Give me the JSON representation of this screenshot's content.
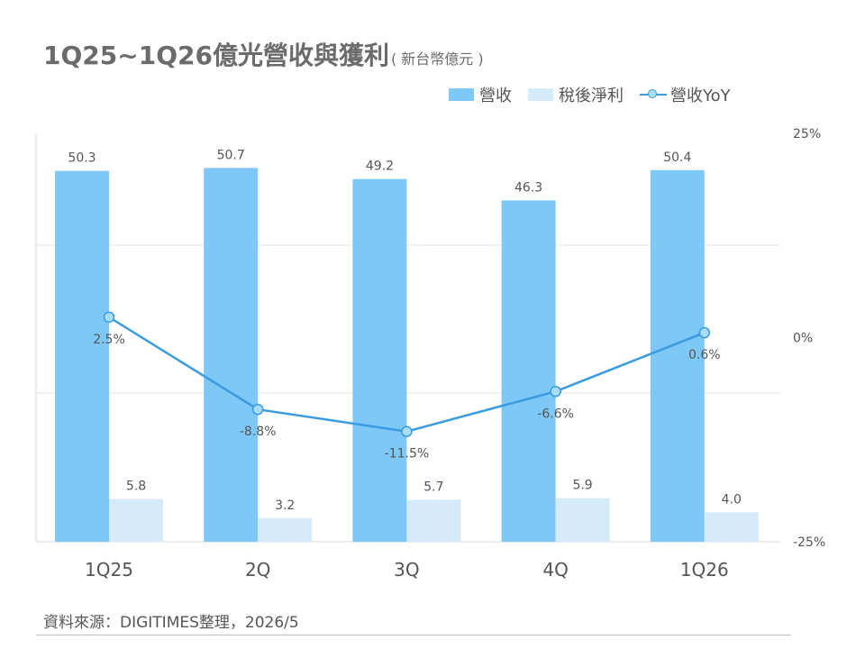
{
  "title": "1Q25~1Q26億光營收與獲利",
  "subtitle": "( 新台幣億元 )",
  "source": "資料來源：DIGITIMES整理，2026/5",
  "colors": {
    "revenue": "#7ec8f7",
    "net_income": "#d6ebfa",
    "yoy_line": "#3a9be0",
    "yoy_marker": "#a9dcf5"
  },
  "chart_data": {
    "type": "bar",
    "categories": [
      "1Q25",
      "2Q",
      "3Q",
      "4Q",
      "1Q26"
    ],
    "series": [
      {
        "name": "營收",
        "type": "bar",
        "values": [
          50.3,
          50.7,
          49.2,
          46.3,
          50.4
        ],
        "labels": [
          "50.3",
          "50.7",
          "49.2",
          "46.3",
          "50.4"
        ]
      },
      {
        "name": "稅後淨利",
        "type": "bar",
        "values": [
          5.8,
          3.2,
          5.7,
          5.9,
          4.0
        ],
        "labels": [
          "5.8",
          "3.2",
          "5.7",
          "5.9",
          "4.0"
        ]
      },
      {
        "name": "營收YoY",
        "type": "line",
        "axis": "right",
        "values": [
          2.5,
          -8.8,
          -11.5,
          -6.6,
          0.6
        ],
        "labels": [
          "2.5%",
          "-8.8%",
          "-11.5%",
          "-6.6%",
          "0.6%"
        ]
      }
    ],
    "ylim_left": [
      0,
      55
    ],
    "ylim_right": [
      -25,
      25
    ],
    "right_ticks": [
      "25%",
      "0%",
      "-25%"
    ],
    "grid": true,
    "legend": "top-right"
  }
}
